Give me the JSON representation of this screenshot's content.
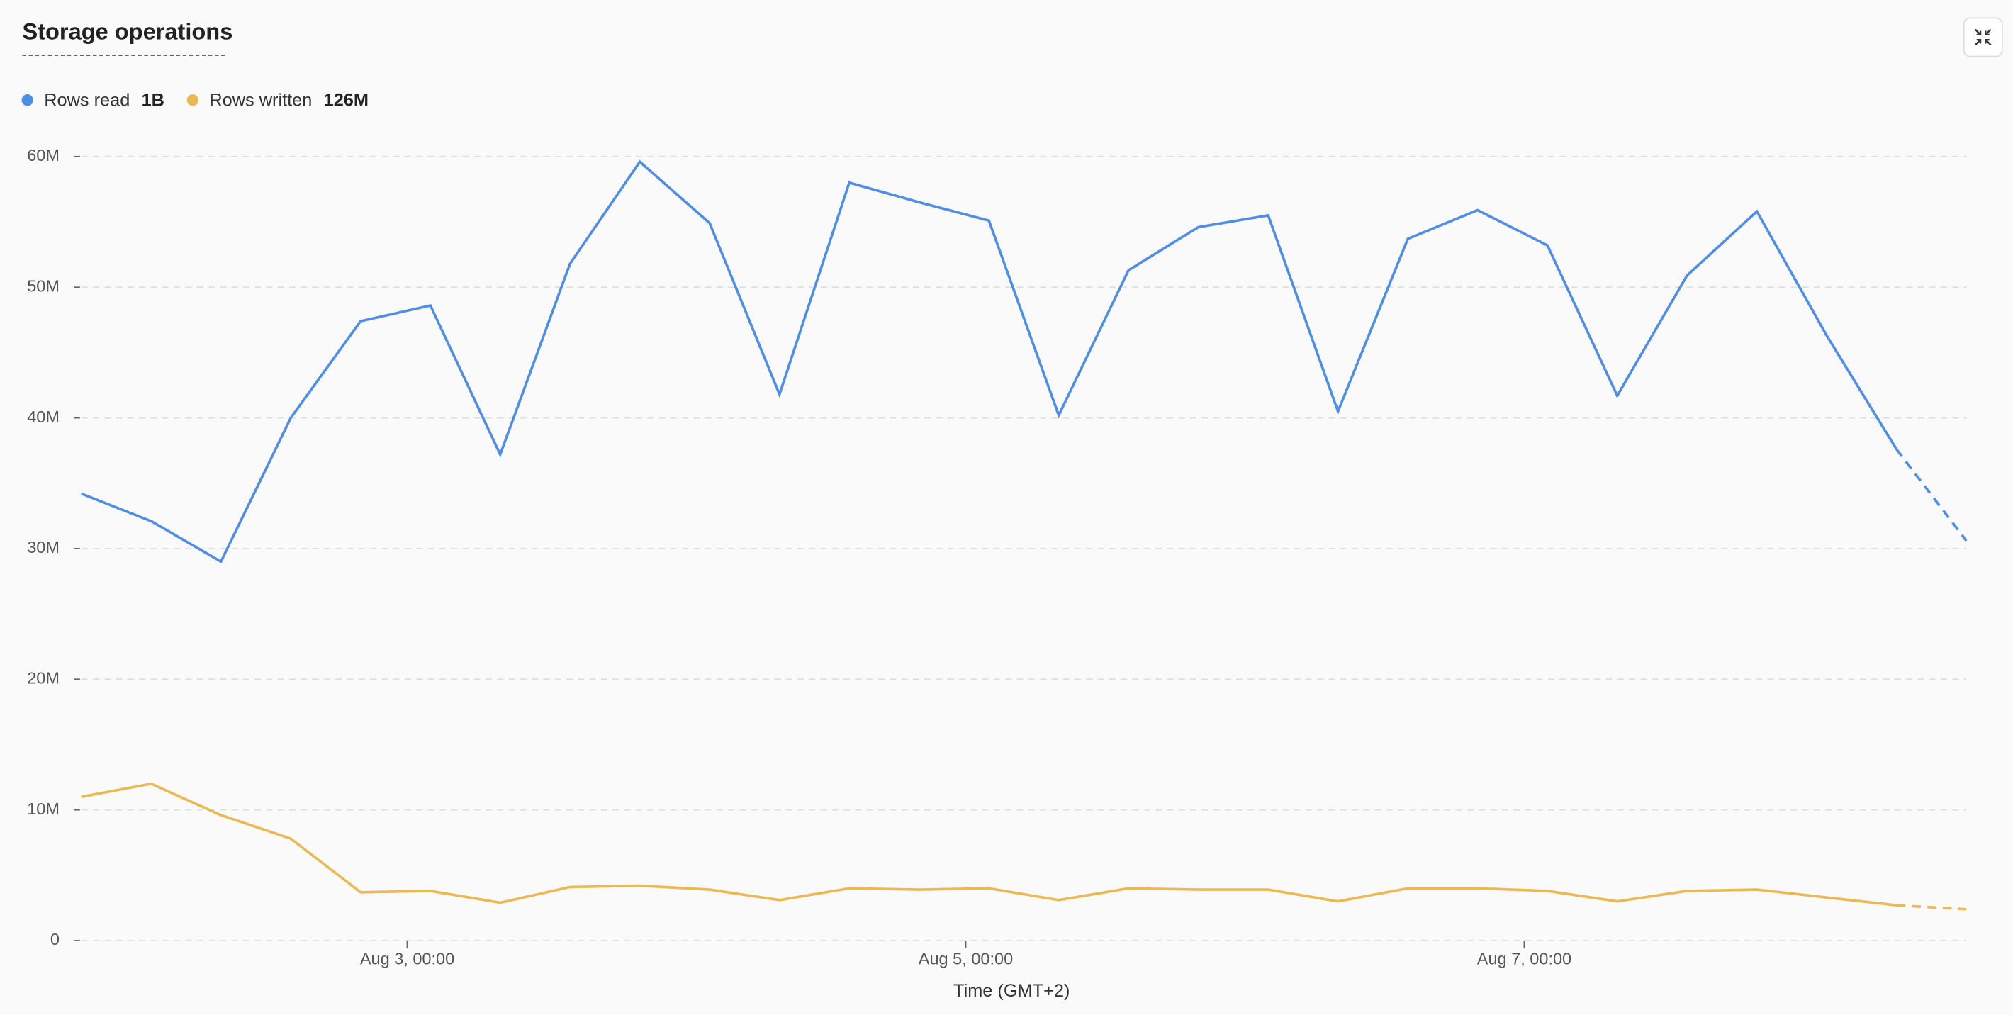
{
  "chart_data": {
    "type": "line",
    "title": "Storage operations",
    "xlabel": "Time (GMT+2)",
    "x": [
      1.833,
      2.083,
      2.333,
      2.583,
      2.833,
      3.083,
      3.333,
      3.583,
      3.833,
      4.083,
      4.333,
      4.583,
      4.833,
      5.083,
      5.333,
      5.583,
      5.833,
      6.083,
      6.333,
      6.583,
      6.833,
      7.083,
      7.333,
      7.583,
      7.833,
      8.083,
      8.333,
      8.583
    ],
    "xlim": [
      1.833,
      8.583
    ],
    "xticks": [
      {
        "value": 3,
        "label": "Aug 3, 00:00"
      },
      {
        "value": 5,
        "label": "Aug 5, 00:00"
      },
      {
        "value": 7,
        "label": "Aug 7, 00:00"
      }
    ],
    "ylim": [
      0,
      60000000
    ],
    "yticks": [
      {
        "value": 0,
        "label": "0"
      },
      {
        "value": 10000000,
        "label": "10M"
      },
      {
        "value": 20000000,
        "label": "20M"
      },
      {
        "value": 30000000,
        "label": "30M"
      },
      {
        "value": 40000000,
        "label": "40M"
      },
      {
        "value": 50000000,
        "label": "50M"
      },
      {
        "value": 60000000,
        "label": "60M"
      }
    ],
    "grid": true,
    "dashed_last_segment": true,
    "series": [
      {
        "name": "Rows read",
        "total": "1B",
        "color": "#4f8ee6",
        "values": [
          34200000,
          32100000,
          29000000,
          40000000,
          47400000,
          48600000,
          37200000,
          51800000,
          59600000,
          54900000,
          41800000,
          58000000,
          56500000,
          55100000,
          40200000,
          51300000,
          54600000,
          55500000,
          40500000,
          53700000,
          55900000,
          53200000,
          41700000,
          50900000,
          55800000,
          46300000,
          37600000,
          30600000
        ]
      },
      {
        "name": "Rows written",
        "total": "126M",
        "color": "#ebb852",
        "values": [
          11000000,
          12000000,
          9600000,
          7800000,
          3700000,
          3800000,
          2900000,
          4100000,
          4200000,
          3900000,
          3100000,
          4000000,
          3900000,
          4000000,
          3100000,
          4000000,
          3900000,
          3900000,
          3000000,
          4000000,
          4000000,
          3800000,
          3000000,
          3800000,
          3900000,
          3300000,
          2700000,
          2400000
        ]
      }
    ]
  }
}
